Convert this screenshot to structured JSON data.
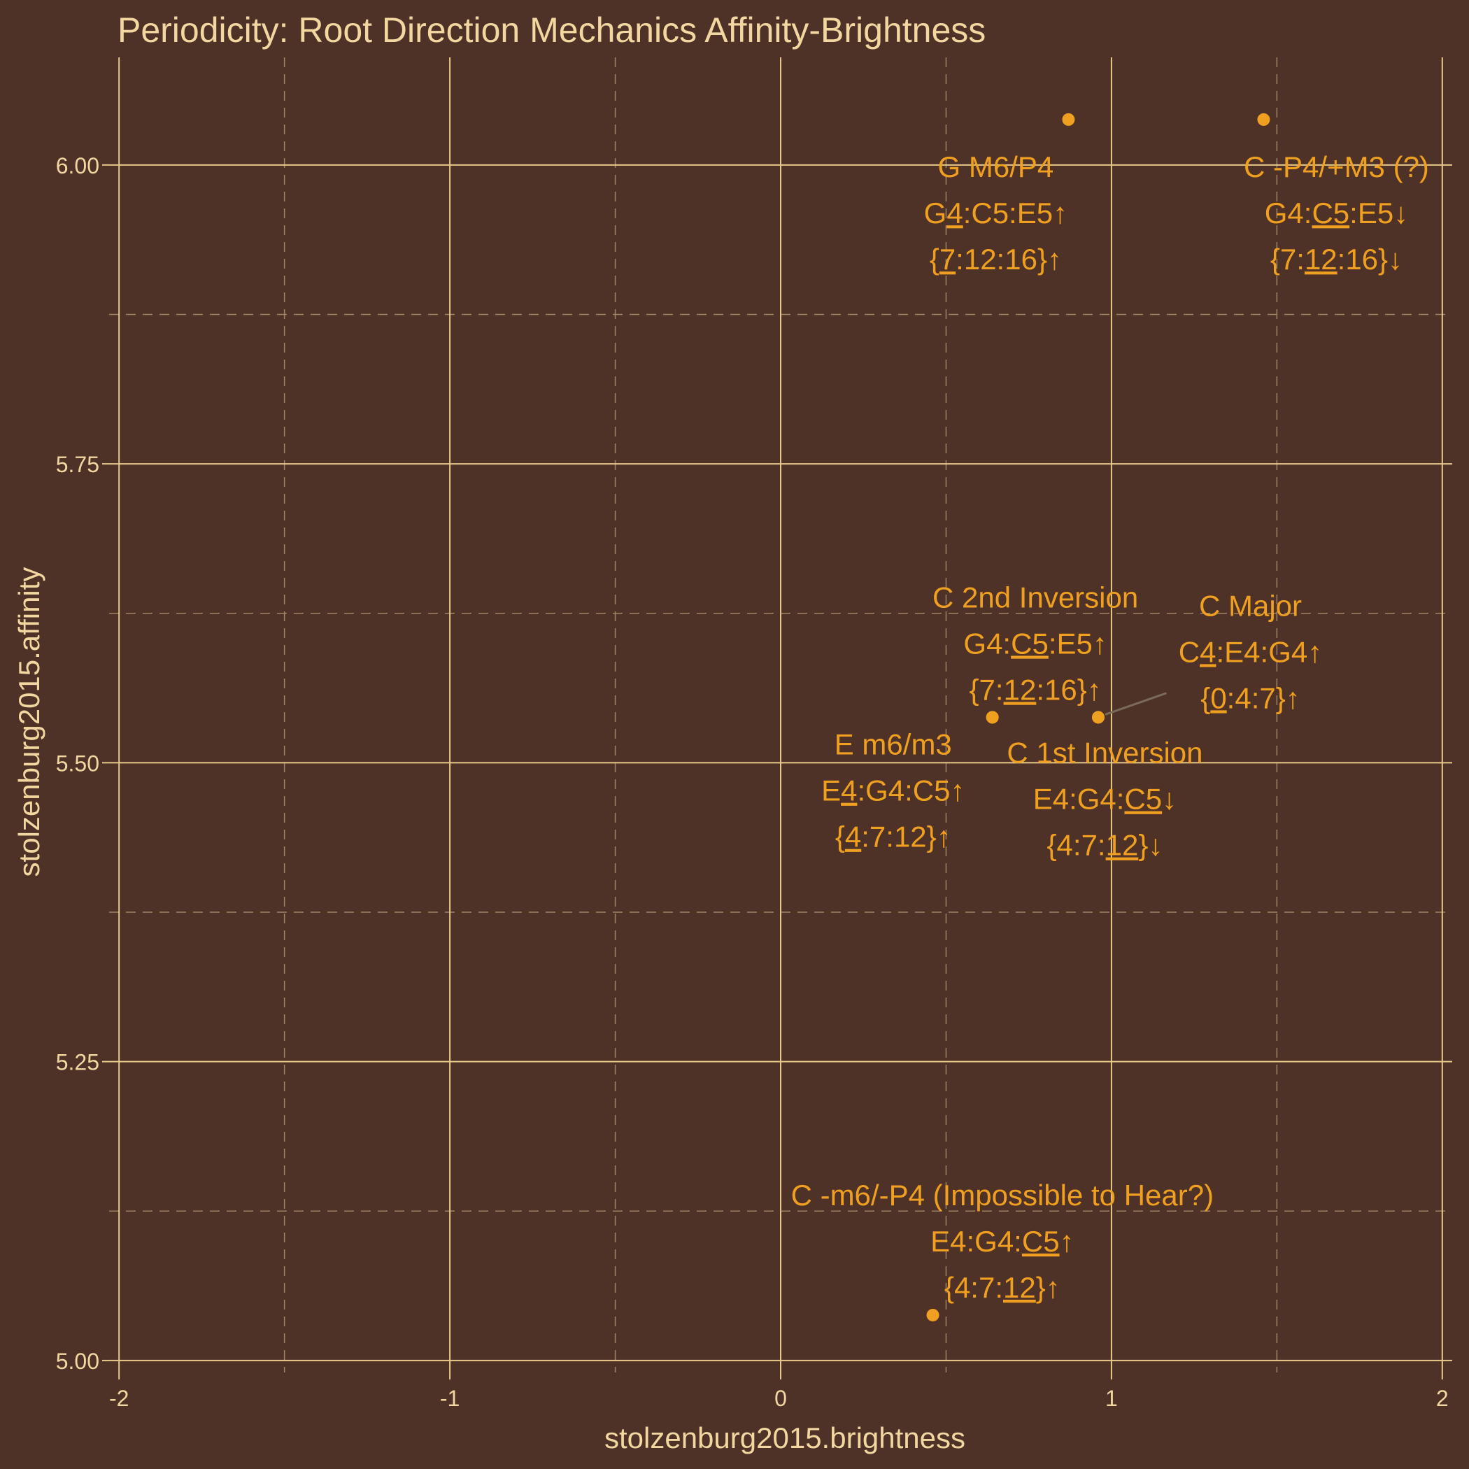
{
  "chart_data": {
    "type": "scatter",
    "title": "Periodicity: Root Direction Mechanics Affinity-Brightness",
    "xlabel": "stolzenburg2015.brightness",
    "ylabel": "stolzenburg2015.affinity",
    "xlim": [
      -2.03,
      2.03
    ],
    "ylim": [
      4.99,
      6.09
    ],
    "x_ticks": [
      -2,
      -1,
      0,
      1,
      2
    ],
    "x_tick_labels": [
      "-2",
      "-1",
      "0",
      "1",
      "2"
    ],
    "y_ticks": [
      5.0,
      5.25,
      5.5,
      5.75,
      6.0
    ],
    "y_tick_labels": [
      "5.00",
      "5.25",
      "5.50",
      "5.75",
      "6.00"
    ],
    "grid": true,
    "colors": {
      "background": "#4e3127",
      "grid_major": "#e8c98a",
      "grid_minor": "#a08566",
      "point": "#f0a020",
      "label": "#f0a020",
      "text": "#f3d7a0",
      "leader": "#7a6a58"
    },
    "points": [
      {
        "x": 0.87,
        "y": 6.038,
        "label_x": 0.65,
        "label_y": 5.96,
        "leader": false,
        "lines": [
          [
            {
              "t": "G M6/P4"
            }
          ],
          [
            {
              "t": "G"
            },
            {
              "t": "4",
              "u": true
            },
            {
              "t": ":C5:E5↑"
            }
          ],
          [
            {
              "t": "{"
            },
            {
              "t": "7",
              "u": true
            },
            {
              "t": ":12:16}↑"
            }
          ]
        ]
      },
      {
        "x": 1.46,
        "y": 6.038,
        "label_x": 1.68,
        "label_y": 5.96,
        "leader": false,
        "lines": [
          [
            {
              "t": "C -P4/+M3 (?)"
            }
          ],
          [
            {
              "t": "G4:"
            },
            {
              "t": "C5",
              "u": true
            },
            {
              "t": ":E5↓"
            }
          ],
          [
            {
              "t": "{7:"
            },
            {
              "t": "12",
              "u": true
            },
            {
              "t": ":16}↓"
            }
          ]
        ]
      },
      {
        "x": 0.64,
        "y": 5.538,
        "label_x": 0.77,
        "label_y": 5.6,
        "leader": false,
        "lines": [
          [
            {
              "t": "C 2nd Inversion"
            }
          ],
          [
            {
              "t": "G4:"
            },
            {
              "t": "C5",
              "u": true
            },
            {
              "t": ":E5↑"
            }
          ],
          [
            {
              "t": "{7:"
            },
            {
              "t": "12",
              "u": true
            },
            {
              "t": ":16}↑"
            }
          ]
        ]
      },
      {
        "x": 0.96,
        "y": 5.538,
        "label_x": 1.42,
        "label_y": 5.593,
        "leader": true,
        "lines": [
          [
            {
              "t": "C Major"
            }
          ],
          [
            {
              "t": "C"
            },
            {
              "t": "4",
              "u": true
            },
            {
              "t": ":E4:G4↑"
            }
          ],
          [
            {
              "t": "{"
            },
            {
              "t": "0",
              "u": true
            },
            {
              "t": ":4:7}↑"
            }
          ]
        ]
      },
      {
        "x": 0.64,
        "y": 5.538,
        "label_x": 0.34,
        "label_y": 5.477,
        "leader": false,
        "lines": [
          [
            {
              "t": "E m6/m3"
            }
          ],
          [
            {
              "t": "E"
            },
            {
              "t": "4",
              "u": true
            },
            {
              "t": ":G4:C5↑"
            }
          ],
          [
            {
              "t": "{"
            },
            {
              "t": "4",
              "u": true
            },
            {
              "t": ":7:12}↑"
            }
          ]
        ]
      },
      {
        "x": 0.96,
        "y": 5.538,
        "label_x": 0.98,
        "label_y": 5.47,
        "leader": false,
        "lines": [
          [
            {
              "t": "C 1st Inversion"
            }
          ],
          [
            {
              "t": "E4:G4:"
            },
            {
              "t": "C5",
              "u": true
            },
            {
              "t": "↓"
            }
          ],
          [
            {
              "t": "{4:7:"
            },
            {
              "t": "12",
              "u": true
            },
            {
              "t": "}↓"
            }
          ]
        ]
      },
      {
        "x": 0.46,
        "y": 5.038,
        "label_x": 0.67,
        "label_y": 5.1,
        "leader": false,
        "lines": [
          [
            {
              "t": "C -m6/-P4 (Impossible to Hear?)"
            }
          ],
          [
            {
              "t": "E4:G4:"
            },
            {
              "t": "C5",
              "u": true
            },
            {
              "t": "↑"
            }
          ],
          [
            {
              "t": "{4:7:"
            },
            {
              "t": "12",
              "u": true
            },
            {
              "t": "}↑"
            }
          ]
        ]
      }
    ]
  }
}
